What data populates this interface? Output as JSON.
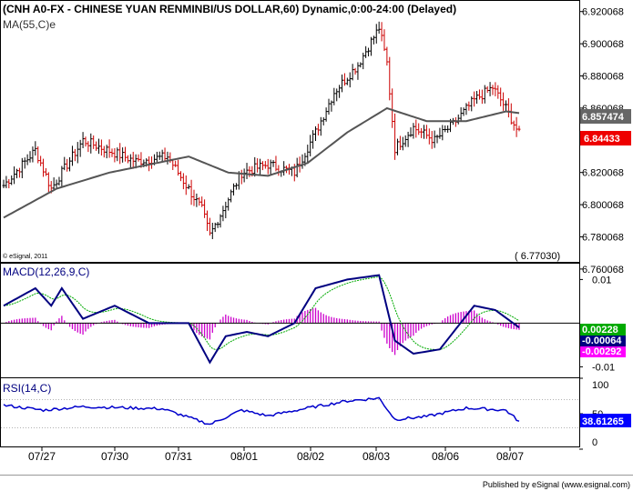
{
  "header": {
    "title": "(CNH A0-FX - CHINESE YUAN RENMINBI/US DOLLAR,60) Dynamic,0:00-24:00 (Delayed)",
    "ma_label": "MA(55,C)e",
    "copyright": "© eSignal, 2011",
    "low_label": "( 6.77030)",
    "footer": "Published by eSignal (www.esignal.com)"
  },
  "colors": {
    "up": "#000000",
    "down": "#cc0000",
    "ma": "#555555",
    "macd": "#000080",
    "signal": "#00aa00",
    "hist": "#cc00cc",
    "rsi": "#0000cc",
    "ma_tag": "#666666",
    "price_tag": "#ee0000",
    "macd_tag": "#00aa00",
    "macd_tag2": "#ff00ff",
    "rsi_tag": "#0000ff"
  },
  "panels": {
    "price": {
      "ticks": [
        "6.920068",
        "6.900068",
        "6.880068",
        "6.860068",
        "6.840068",
        "6.820068",
        "6.800068",
        "6.780068",
        "6.760068"
      ],
      "ma_value": "6.857474",
      "last_value": "6.84433"
    },
    "macd": {
      "label": "MACD(12,26,9,C)",
      "ticks": [
        "0.01",
        "-0.01"
      ],
      "signal_value": "0.00228",
      "macd_value": "-0.00064",
      "hist_value": "-0.00292"
    },
    "rsi": {
      "label": "RSI(14,C)",
      "ticks": [
        "100",
        "50",
        "0"
      ],
      "value": "38.61265"
    }
  },
  "xaxis": {
    "labels": [
      "07/27",
      "07/30",
      "07/31",
      "08/01",
      "08/02",
      "08/03",
      "08/06",
      "08/07"
    ]
  },
  "chart_data": {
    "type": "line",
    "description_series": "hourly OHLC bars with MA, MACD and RSI",
    "x": [
      "07/27",
      "07/30",
      "07/31",
      "08/01",
      "08/02",
      "08/03",
      "08/06",
      "08/07"
    ],
    "price_key_points": [
      {
        "x": 0,
        "close": 6.812
      },
      {
        "x": 12,
        "close": 6.834
      },
      {
        "x": 18,
        "close": 6.81
      },
      {
        "x": 30,
        "close": 6.84
      },
      {
        "x": 50,
        "close": 6.827
      },
      {
        "x": 62,
        "close": 6.83
      },
      {
        "x": 75,
        "close": 6.797
      },
      {
        "x": 78,
        "close": 6.781
      },
      {
        "x": 90,
        "close": 6.82
      },
      {
        "x": 100,
        "close": 6.825
      },
      {
        "x": 110,
        "close": 6.82
      },
      {
        "x": 118,
        "close": 6.845
      },
      {
        "x": 125,
        "close": 6.87
      },
      {
        "x": 134,
        "close": 6.887
      },
      {
        "x": 142,
        "close": 6.91
      },
      {
        "x": 145,
        "close": 6.888
      },
      {
        "x": 148,
        "close": 6.835
      },
      {
        "x": 155,
        "close": 6.848
      },
      {
        "x": 163,
        "close": 6.84
      },
      {
        "x": 170,
        "close": 6.85
      },
      {
        "x": 178,
        "close": 6.865
      },
      {
        "x": 185,
        "close": 6.873
      },
      {
        "x": 190,
        "close": 6.86
      },
      {
        "x": 195,
        "close": 6.844
      }
    ],
    "ma_key_points": [
      {
        "x": 0,
        "v": 6.792
      },
      {
        "x": 20,
        "v": 6.81
      },
      {
        "x": 40,
        "v": 6.82
      },
      {
        "x": 70,
        "v": 6.83
      },
      {
        "x": 85,
        "v": 6.82
      },
      {
        "x": 100,
        "v": 6.818
      },
      {
        "x": 115,
        "v": 6.826
      },
      {
        "x": 130,
        "v": 6.845
      },
      {
        "x": 145,
        "v": 6.86
      },
      {
        "x": 160,
        "v": 6.852
      },
      {
        "x": 175,
        "v": 6.852
      },
      {
        "x": 190,
        "v": 6.858
      },
      {
        "x": 195,
        "v": 6.857
      }
    ],
    "macd_key_points": [
      {
        "x": 0,
        "v": 0.004
      },
      {
        "x": 12,
        "v": 0.008
      },
      {
        "x": 18,
        "v": 0.004
      },
      {
        "x": 22,
        "v": 0.008
      },
      {
        "x": 30,
        "v": 0.001
      },
      {
        "x": 42,
        "v": 0.004
      },
      {
        "x": 55,
        "v": 0.0
      },
      {
        "x": 70,
        "v": 0.0
      },
      {
        "x": 78,
        "v": -0.009
      },
      {
        "x": 84,
        "v": -0.003
      },
      {
        "x": 92,
        "v": -0.002
      },
      {
        "x": 100,
        "v": -0.003
      },
      {
        "x": 110,
        "v": 0.0
      },
      {
        "x": 118,
        "v": 0.008
      },
      {
        "x": 130,
        "v": 0.01
      },
      {
        "x": 142,
        "v": 0.011
      },
      {
        "x": 148,
        "v": -0.004
      },
      {
        "x": 155,
        "v": -0.007
      },
      {
        "x": 165,
        "v": -0.006
      },
      {
        "x": 178,
        "v": 0.004
      },
      {
        "x": 186,
        "v": 0.003
      },
      {
        "x": 195,
        "v": -0.001
      }
    ],
    "rsi_key_points": [
      {
        "x": 0,
        "v": 62
      },
      {
        "x": 15,
        "v": 55
      },
      {
        "x": 30,
        "v": 60
      },
      {
        "x": 60,
        "v": 57
      },
      {
        "x": 78,
        "v": 35
      },
      {
        "x": 90,
        "v": 55
      },
      {
        "x": 100,
        "v": 47
      },
      {
        "x": 115,
        "v": 58
      },
      {
        "x": 130,
        "v": 68
      },
      {
        "x": 142,
        "v": 72
      },
      {
        "x": 148,
        "v": 42
      },
      {
        "x": 160,
        "v": 46
      },
      {
        "x": 175,
        "v": 58
      },
      {
        "x": 190,
        "v": 55
      },
      {
        "x": 195,
        "v": 39
      }
    ],
    "ranges": {
      "price": [
        6.76,
        6.925
      ],
      "macd": [
        -0.012,
        0.013
      ],
      "rsi": [
        0,
        100
      ]
    },
    "grid": false
  }
}
